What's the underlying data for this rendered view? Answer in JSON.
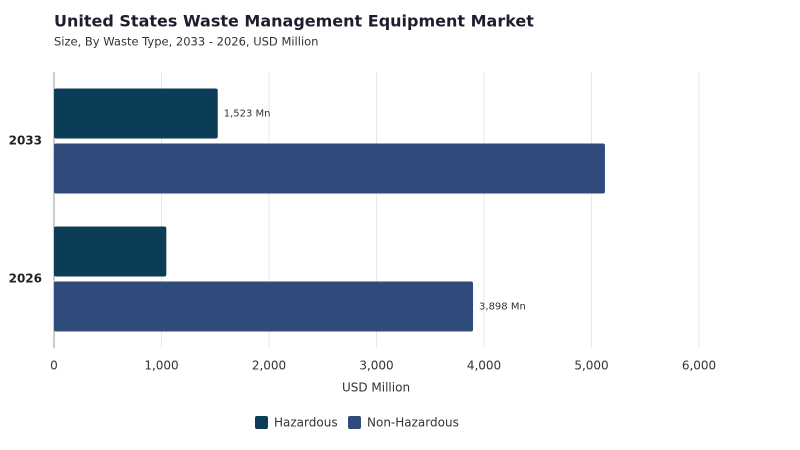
{
  "chart_data": {
    "type": "hbar",
    "title": "United States Waste Management Equipment Market",
    "subtitle": "Size, By Waste Type, 2033 - 2026, USD Million",
    "x_label": "USD Million",
    "categories": [
      "2033",
      "2026"
    ],
    "series": [
      {
        "name": "Hazardous",
        "color": "#0b3d59",
        "values": [
          1523,
          1045
        ],
        "value_labels": [
          "1,523 Mn",
          null
        ]
      },
      {
        "name": "Non-Hazardous",
        "color": "#2f4b7c",
        "values": [
          5125,
          3898
        ],
        "value_labels": [
          null,
          "3,898 Mn"
        ]
      }
    ],
    "xlim": [
      0,
      6000
    ],
    "xticks": [
      0,
      {
        "value": 1000,
        "label": "1,000"
      },
      {
        "value": 2000,
        "label": "2,000"
      },
      {
        "value": 3000,
        "label": "3,000"
      },
      {
        "value": 4000,
        "label": "4,000"
      },
      {
        "value": 5000,
        "label": "5,000"
      },
      {
        "value": 6000,
        "label": "6,000"
      }
    ],
    "grid": true,
    "legend": "bottom"
  }
}
